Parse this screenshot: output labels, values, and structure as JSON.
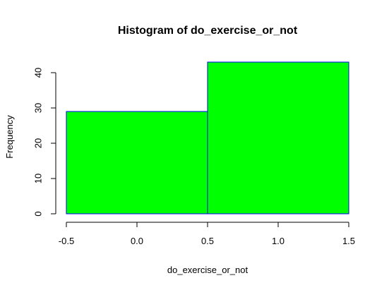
{
  "chart_data": {
    "type": "bar",
    "subtype": "histogram",
    "title": "Histogram of do_exercise_or_not",
    "xlabel": "do_exercise_or_not",
    "ylabel": "Frequency",
    "bins": [
      {
        "start": -0.5,
        "end": 0.5,
        "value": 29
      },
      {
        "start": 0.5,
        "end": 1.5,
        "value": 43
      }
    ],
    "xlim": [
      -0.5,
      1.5
    ],
    "ylim": [
      0,
      43
    ],
    "x_ticks": [
      -0.5,
      0.0,
      0.5,
      1.0,
      1.5
    ],
    "x_tick_labels": [
      "-0.5",
      "0.0",
      "0.5",
      "1.0",
      "1.5"
    ],
    "y_ticks": [
      0,
      10,
      20,
      30,
      40
    ],
    "y_tick_labels": [
      "0",
      "10",
      "20",
      "30",
      "40"
    ],
    "grid": false,
    "legend": "none",
    "colors": {
      "bar_fill": "#00FF00",
      "bar_border": "#0000FF",
      "axis": "#000000",
      "text": "#000000"
    }
  }
}
